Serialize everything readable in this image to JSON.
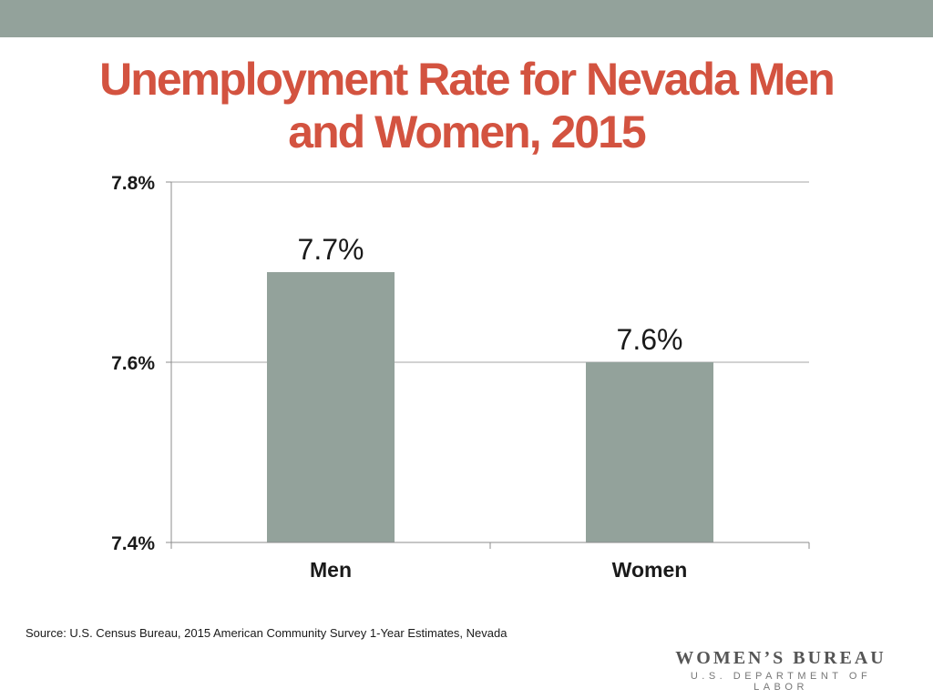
{
  "title_lines": [
    "Unemployment Rate for Nevada Men",
    "and Women, 2015"
  ],
  "colors": {
    "band": "#93a29b",
    "title": "#d35340",
    "bar": "#93a29b",
    "grid": "#a6a6a6",
    "axis": "#8c8c8c",
    "text": "#1a1a1a"
  },
  "chart_data": {
    "type": "bar",
    "title": "Unemployment Rate for Nevada Men and Women, 2015",
    "categories": [
      "Men",
      "Women"
    ],
    "values": [
      7.7,
      7.6
    ],
    "data_labels": [
      "7.7%",
      "7.6%"
    ],
    "xlabel": "",
    "ylabel": "",
    "ylim": [
      7.4,
      7.8
    ],
    "yticks": [
      7.4,
      7.6,
      7.8
    ],
    "ytick_labels": [
      "7.4%",
      "7.6%",
      "7.8%"
    ],
    "grid": true,
    "legend": "none"
  },
  "source": "Source: U.S. Census Bureau, 2015 American Community Survey 1-Year Estimates, Nevada",
  "logo": {
    "line1": "WOMEN’S BUREAU",
    "line2": "U.S. DEPARTMENT OF LABOR"
  }
}
